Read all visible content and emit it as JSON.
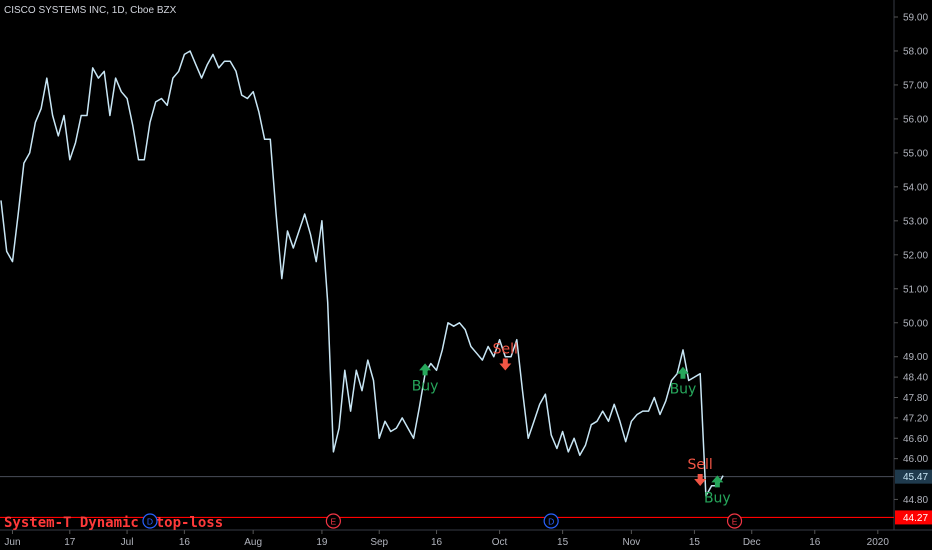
{
  "chart_data": {
    "type": "line",
    "title": "CISCO SYSTEMS INC, 1D, Cboe BZX",
    "ylim": [
      43.9,
      59.5
    ],
    "y_ticks": [
      44.8,
      45.47,
      46.0,
      46.6,
      47.2,
      47.8,
      48.4,
      49.0,
      50.0,
      51.0,
      52.0,
      53.0,
      54.0,
      55.0,
      56.0,
      57.0,
      58.0,
      59.0
    ],
    "y_tick_labels": [
      "44.80",
      "",
      "46.00",
      "46.60",
      "47.20",
      "47.80",
      "48.40",
      "49.00",
      "50.00",
      "51.00",
      "52.00",
      "53.00",
      "54.00",
      "55.00",
      "56.00",
      "57.00",
      "58.00",
      "59.00"
    ],
    "x_ticks": [
      {
        "label": "Jun",
        "i": 2
      },
      {
        "label": "17",
        "i": 12
      },
      {
        "label": "Jul",
        "i": 22
      },
      {
        "label": "16",
        "i": 32
      },
      {
        "label": "Aug",
        "i": 44
      },
      {
        "label": "19",
        "i": 56
      },
      {
        "label": "Sep",
        "i": 66
      },
      {
        "label": "16",
        "i": 76
      },
      {
        "label": "Oct",
        "i": 87
      },
      {
        "label": "15",
        "i": 98
      },
      {
        "label": "Nov",
        "i": 110
      },
      {
        "label": "15",
        "i": 121
      },
      {
        "label": "Dec",
        "i": 131
      },
      {
        "label": "16",
        "i": 142
      },
      {
        "label": "2020",
        "i": 153
      }
    ],
    "x_max_index": 156,
    "series": [
      {
        "color": "#c8e6f5",
        "values": [
          53.6,
          52.1,
          51.8,
          53.2,
          54.7,
          55.0,
          55.9,
          56.3,
          57.2,
          56.1,
          55.5,
          56.1,
          54.8,
          55.3,
          56.1,
          56.1,
          57.5,
          57.2,
          57.4,
          56.1,
          57.2,
          56.8,
          56.6,
          55.8,
          54.8,
          54.8,
          55.9,
          56.5,
          56.6,
          56.4,
          57.2,
          57.4,
          57.9,
          58.0,
          57.6,
          57.2,
          57.6,
          57.9,
          57.5,
          57.7,
          57.7,
          57.4,
          56.7,
          56.6,
          56.8,
          56.2,
          55.4,
          55.4,
          53.2,
          51.3,
          52.7,
          52.2,
          52.7,
          53.2,
          52.6,
          51.8,
          53.0,
          50.6,
          46.2,
          46.9,
          48.6,
          47.4,
          48.6,
          48.0,
          48.9,
          48.3,
          46.6,
          47.1,
          46.8,
          46.9,
          47.2,
          46.9,
          46.6,
          47.5,
          48.5,
          48.8,
          48.6,
          49.2,
          50.0,
          49.9,
          50.0,
          49.8,
          49.3,
          49.1,
          48.9,
          49.3,
          49.0,
          49.5,
          49.0,
          49.0,
          49.5,
          48.0,
          46.6,
          47.1,
          47.6,
          47.9,
          46.7,
          46.3,
          46.8,
          46.2,
          46.6,
          46.1,
          46.4,
          47.0,
          47.1,
          47.4,
          47.1,
          47.6,
          47.1,
          46.5,
          47.1,
          47.3,
          47.4,
          47.4,
          47.8,
          47.3,
          47.7,
          48.3,
          48.5,
          49.2,
          48.3,
          48.4,
          48.5,
          44.9,
          45.2,
          45.2,
          45.5
        ]
      }
    ],
    "current_price": {
      "value": 45.47,
      "label": "45.47"
    },
    "stop_loss": {
      "value": 44.27,
      "label": "44.27",
      "color": "#ff0000"
    },
    "signals": [
      {
        "label": "Buy",
        "type": "buy",
        "i": 74,
        "y": 48.6
      },
      {
        "label": "Sell",
        "type": "sell",
        "i": 88,
        "y": 48.8
      },
      {
        "label": "Buy",
        "type": "buy",
        "i": 119,
        "y": 48.5
      },
      {
        "label": "Sell",
        "type": "sell",
        "i": 122,
        "y": 45.4
      },
      {
        "label": "Buy",
        "type": "buy",
        "i": 125,
        "y": 45.3
      }
    ],
    "events": [
      {
        "label": "D",
        "i": 26,
        "color": "#2962ff"
      },
      {
        "label": "E",
        "i": 58,
        "color": "#f23645"
      },
      {
        "label": "D",
        "i": 96,
        "color": "#2962ff"
      },
      {
        "label": "E",
        "i": 128,
        "color": "#f23645"
      }
    ],
    "indicator_label": "System-T Dynamic Stop-loss",
    "colors": {
      "buy": "#26a65b",
      "sell": "#f05545",
      "line": "#c8e6f5",
      "grid_border": "#363a45"
    }
  }
}
